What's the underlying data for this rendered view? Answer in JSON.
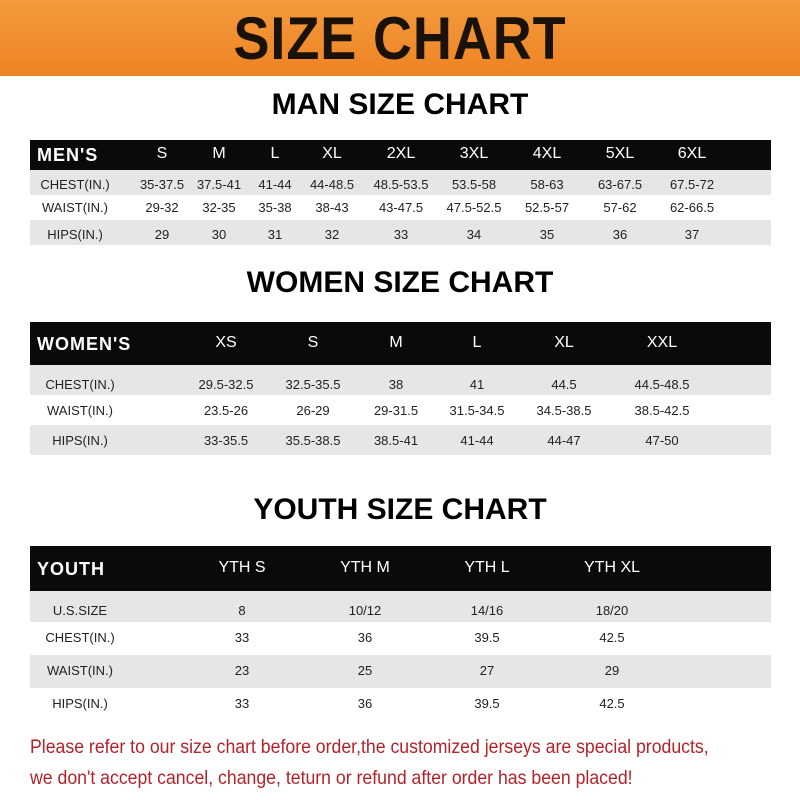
{
  "banner": {
    "title": "SIZE CHART",
    "color": "#f08a2a"
  },
  "men": {
    "title": "MAN SIZE CHART",
    "header": [
      "MEN'S",
      "S",
      "M",
      "L",
      "XL",
      "2XL",
      "3XL",
      "4XL",
      "5XL",
      "6XL"
    ],
    "rows": [
      [
        "CHEST(IN.)",
        "35-37.5",
        "37.5-41",
        "41-44",
        "44-48.5",
        "48.5-53.5",
        "53.5-58",
        "58-63",
        "63-67.5",
        "67.5-72"
      ],
      [
        "WAIST(IN.)",
        "29-32",
        "32-35",
        "35-38",
        "38-43",
        "43-47.5",
        "47.5-52.5",
        "52.5-57",
        "57-62",
        "62-66.5"
      ],
      [
        "HIPS(IN.)",
        "29",
        "30",
        "31",
        "32",
        "33",
        "34",
        "35",
        "36",
        "37"
      ]
    ]
  },
  "women": {
    "title": "WOMEN SIZE CHART",
    "header": [
      "WOMEN'S",
      "XS",
      "S",
      "M",
      "L",
      "XL",
      "XXL"
    ],
    "rows": [
      [
        "CHEST(IN.)",
        "29.5-32.5",
        "32.5-35.5",
        "38",
        "41",
        "44.5",
        "44.5-48.5"
      ],
      [
        "WAIST(IN.)",
        "23.5-26",
        "26-29",
        "29-31.5",
        "31.5-34.5",
        "34.5-38.5",
        "38.5-42.5"
      ],
      [
        "HIPS(IN.)",
        "33-35.5",
        "35.5-38.5",
        "38.5-41",
        "41-44",
        "44-47",
        "47-50"
      ]
    ]
  },
  "youth": {
    "title": "YOUTH SIZE CHART",
    "header": [
      "YOUTH",
      "YTH S",
      "YTH M",
      "YTH L",
      "YTH XL"
    ],
    "rows": [
      [
        "U.S.SIZE",
        "8",
        "10/12",
        "14/16",
        "18/20"
      ],
      [
        "CHEST(IN.)",
        "33",
        "36",
        "39.5",
        "42.5"
      ],
      [
        "WAIST(IN.)",
        "23",
        "25",
        "27",
        "29"
      ],
      [
        "HIPS(IN.)",
        "33",
        "36",
        "39.5",
        "42.5"
      ]
    ]
  },
  "note": {
    "line1": "Please refer to our size chart before order,the customized jerseys are special products,",
    "line2": "we don't accept cancel, change, teturn or refund after order has been placed!"
  }
}
